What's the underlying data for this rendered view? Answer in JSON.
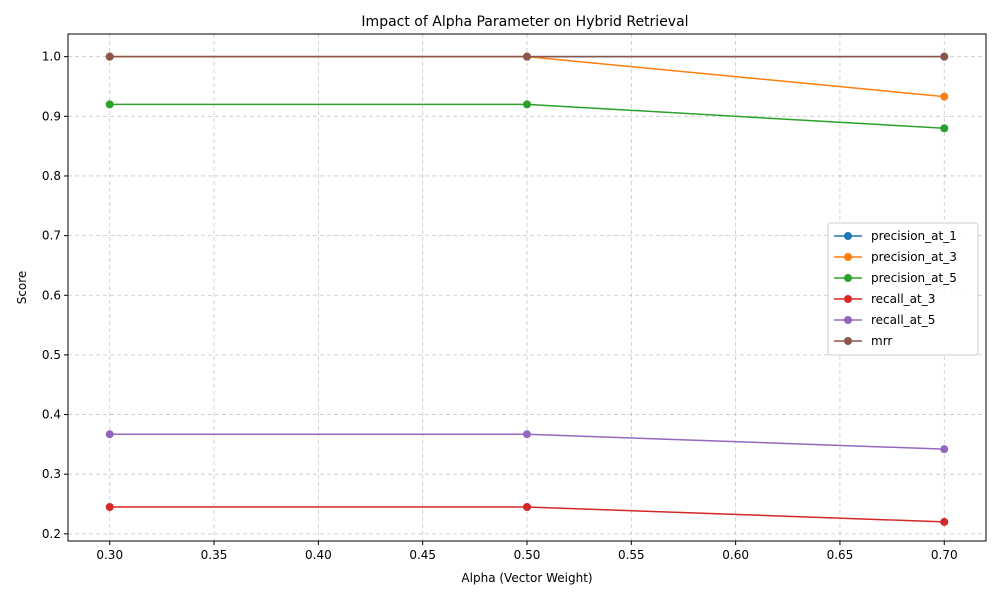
{
  "chart_data": {
    "type": "line",
    "title": "Impact of Alpha Parameter on Hybrid Retrieval",
    "xlabel": "Alpha (Vector Weight)",
    "ylabel": "Score",
    "x": [
      0.3,
      0.5,
      0.7
    ],
    "xlim": [
      0.28,
      0.72
    ],
    "ylim": [
      0.188,
      1.038
    ],
    "xticks": [
      0.3,
      0.35,
      0.4,
      0.45,
      0.5,
      0.55,
      0.6,
      0.65,
      0.7
    ],
    "xtick_labels": [
      "0.30",
      "0.35",
      "0.40",
      "0.45",
      "0.50",
      "0.55",
      "0.60",
      "0.65",
      "0.70"
    ],
    "yticks": [
      0.2,
      0.3,
      0.4,
      0.5,
      0.6,
      0.7,
      0.8,
      0.9,
      1.0
    ],
    "ytick_labels": [
      "0.2",
      "0.3",
      "0.4",
      "0.5",
      "0.6",
      "0.7",
      "0.8",
      "0.9",
      "1.0"
    ],
    "grid": true,
    "legend_position": "center-right",
    "series": [
      {
        "name": "precision_at_1",
        "color": "#1f77b4",
        "values": [
          1.0,
          1.0,
          1.0
        ]
      },
      {
        "name": "precision_at_3",
        "color": "#ff7f0e",
        "values": [
          1.0,
          1.0,
          0.933
        ]
      },
      {
        "name": "precision_at_5",
        "color": "#2ca02c",
        "values": [
          0.92,
          0.92,
          0.88
        ]
      },
      {
        "name": "recall_at_3",
        "color": "#d62728",
        "values": [
          0.245,
          0.245,
          0.22
        ]
      },
      {
        "name": "recall_at_5",
        "color": "#9467bd",
        "values": [
          0.367,
          0.367,
          0.342
        ]
      },
      {
        "name": "mrr",
        "color": "#8c564b",
        "values": [
          1.0,
          1.0,
          1.0
        ]
      }
    ]
  }
}
